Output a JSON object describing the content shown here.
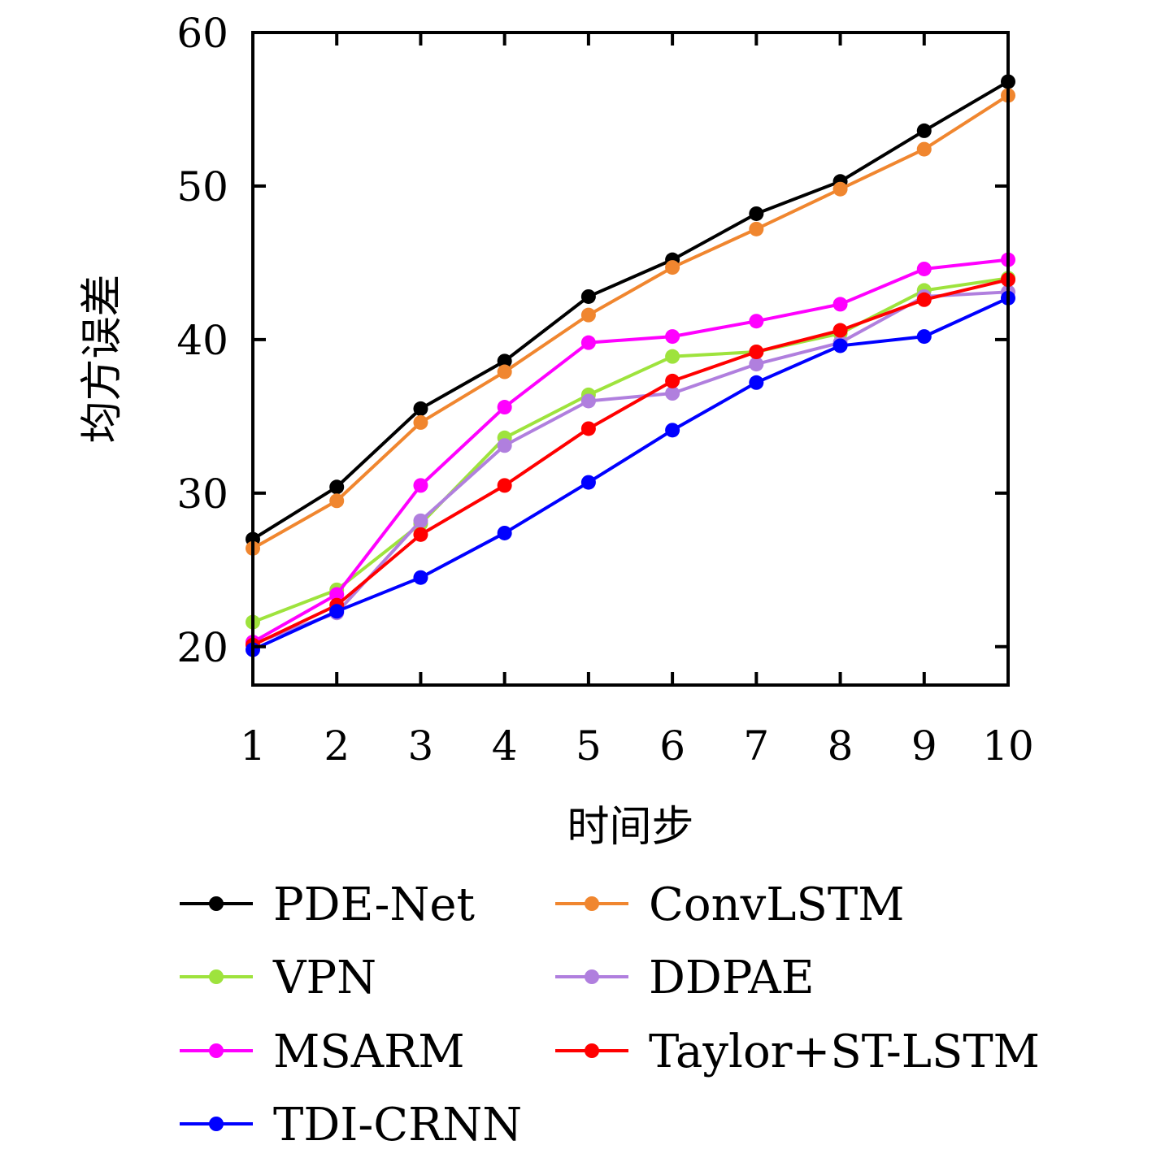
{
  "chart_data": {
    "type": "line",
    "title": "",
    "xlabel": "时间步",
    "ylabel": "均方误差",
    "x": [
      1,
      2,
      3,
      4,
      5,
      6,
      7,
      8,
      9,
      10
    ],
    "xticks": [
      "1",
      "2",
      "3",
      "4",
      "5",
      "6",
      "7",
      "8",
      "9",
      "10"
    ],
    "yticks": [
      "20",
      "30",
      "40",
      "50",
      "60"
    ],
    "ylim": [
      17.5,
      60
    ],
    "grid": false,
    "legend_position": "bottom",
    "series": [
      {
        "name": "PDE-Net",
        "color": "#000000",
        "values": [
          27.0,
          30.4,
          35.5,
          38.6,
          42.8,
          45.2,
          48.2,
          50.3,
          53.6,
          56.8
        ]
      },
      {
        "name": "ConvLSTM",
        "color": "#f0862f",
        "values": [
          26.4,
          29.5,
          34.6,
          37.9,
          41.6,
          44.7,
          47.2,
          49.8,
          52.4,
          55.9
        ]
      },
      {
        "name": "VPN",
        "color": "#9ee33d",
        "values": [
          21.6,
          23.7,
          28.0,
          33.6,
          36.4,
          38.9,
          39.2,
          40.4,
          43.2,
          44.0
        ]
      },
      {
        "name": "DDPAE",
        "color": "#b07fde",
        "values": [
          20.2,
          22.2,
          28.2,
          33.1,
          36.0,
          36.5,
          38.4,
          39.8,
          42.8,
          43.1
        ]
      },
      {
        "name": "MSARM",
        "color": "#ff00ff",
        "values": [
          20.3,
          23.4,
          30.5,
          35.6,
          39.8,
          40.2,
          41.2,
          42.3,
          44.6,
          45.2
        ]
      },
      {
        "name": "Taylor+ST-LSTM",
        "color": "#ff0000",
        "values": [
          20.1,
          22.7,
          27.3,
          30.5,
          34.2,
          37.3,
          39.2,
          40.6,
          42.6,
          43.9
        ]
      },
      {
        "name": "TDI-CRNN",
        "color": "#0000ff",
        "values": [
          19.8,
          22.3,
          24.5,
          27.4,
          30.7,
          34.1,
          37.2,
          39.6,
          40.2,
          42.7
        ]
      }
    ]
  }
}
